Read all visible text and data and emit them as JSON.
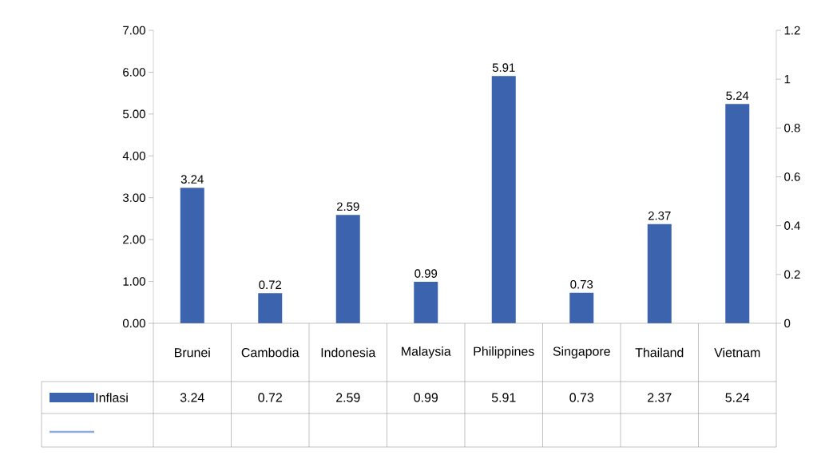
{
  "chart_data": {
    "type": "bar",
    "categories": [
      "Brunei",
      "Cambodia",
      "Indonesia",
      "Malaysia",
      "Philippines",
      "Singapore",
      "Thailand",
      "Vietnam"
    ],
    "series": [
      {
        "name": "Inflasi",
        "color": "#3c64ae",
        "values": [
          3.24,
          0.72,
          2.59,
          0.99,
          5.91,
          0.73,
          2.37,
          5.24
        ],
        "value_labels": [
          "3.24",
          "0.72",
          "2.59",
          "0.99",
          "5.91",
          "0.73",
          "2.37",
          "5.24"
        ]
      },
      {
        "type": "line",
        "axis": "y2",
        "color": "#8faadc",
        "values": [
          null,
          null,
          null,
          null,
          null,
          null,
          null,
          null
        ]
      }
    ],
    "annotations": [
      "3.24",
      "0.72",
      "2.59",
      "0.99",
      "5.91",
      "0.73",
      "2.37",
      "5.24"
    ],
    "ylim": [
      0,
      7
    ],
    "yticks": [
      {
        "value": 0,
        "label": "0.00"
      },
      {
        "value": 1,
        "label": "1.00"
      },
      {
        "value": 2,
        "label": "2.00"
      },
      {
        "value": 3,
        "label": "3.00"
      },
      {
        "value": 4,
        "label": "4.00"
      },
      {
        "value": 5,
        "label": "5.00"
      },
      {
        "value": 6,
        "label": "6.00"
      },
      {
        "value": 7,
        "label": "7.00"
      }
    ],
    "y2lim": [
      0,
      1.2
    ],
    "y2ticks": [
      0,
      0.2,
      0.4,
      0.6,
      0.8,
      1,
      1.2
    ],
    "legend": "bottom",
    "grid": false
  }
}
